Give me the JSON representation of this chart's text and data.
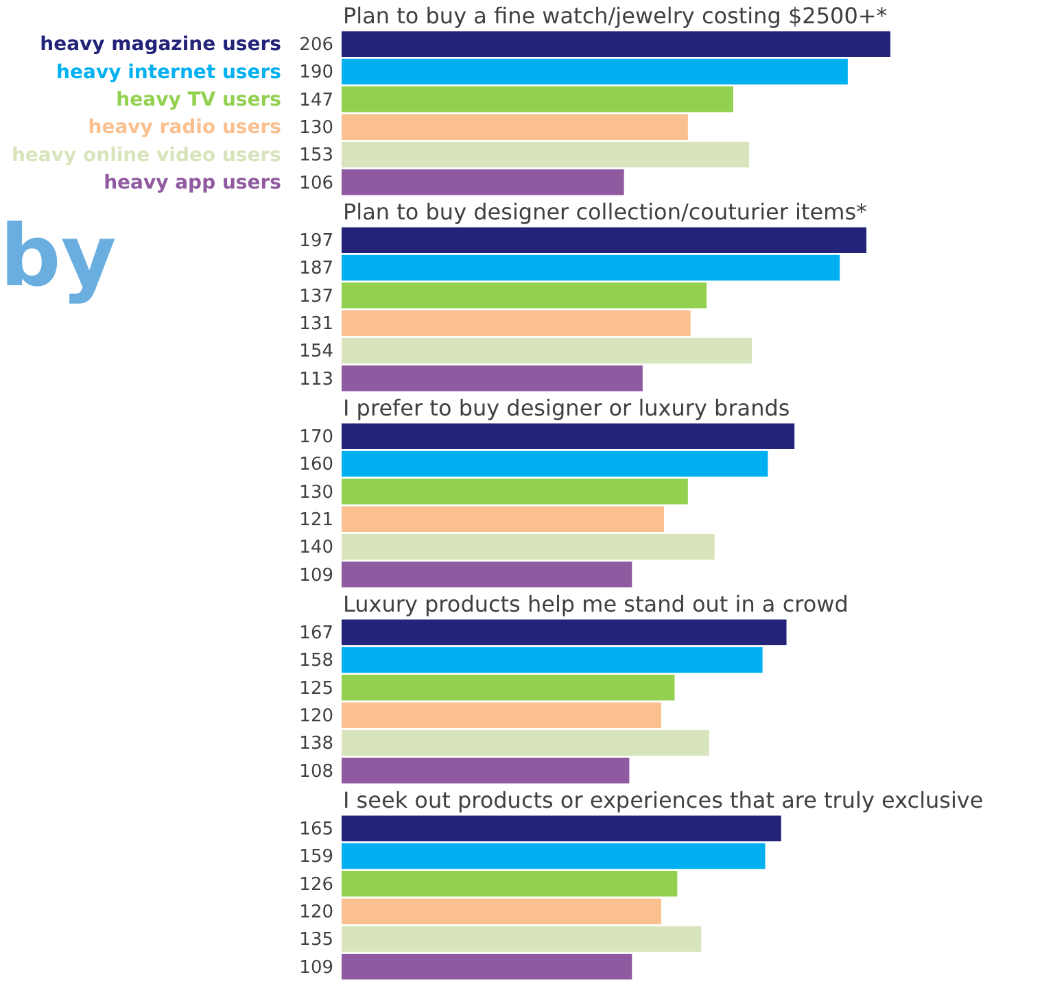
{
  "chart_data": [
    {
      "type": "bar",
      "orientation": "horizontal",
      "title": "Plan to buy a fine watch/jewelry costing $2500+*",
      "categories": [
        "heavy magazine users",
        "heavy internet users",
        "heavy TV users",
        "heavy radio users",
        "heavy online video users",
        "heavy app users"
      ],
      "values": [
        206,
        190,
        147,
        130,
        153,
        106
      ],
      "colors": [
        "#232479",
        "#00b0f0",
        "#92d050",
        "#fac090",
        "#d8e4bc",
        "#8f5aa0"
      ],
      "data_labels": true,
      "tick_labels": "y",
      "annotations": [
        "by"
      ]
    },
    {
      "type": "bar",
      "orientation": "horizontal",
      "title": "Plan to buy designer collection/couturier items*",
      "categories": [
        null,
        null,
        null,
        null,
        null,
        null
      ],
      "values": [
        197,
        187,
        137,
        131,
        154,
        113
      ],
      "colors": [
        "#232479",
        "#00b0f0",
        "#92d050",
        "#fac090",
        "#d8e4bc",
        "#8f5aa0"
      ],
      "data_labels": true,
      "tick_labels": false
    },
    {
      "type": "bar",
      "orientation": "horizontal",
      "title": "I prefer to buy designer or luxury brands",
      "categories": [
        null,
        null,
        null,
        null,
        null,
        null
      ],
      "values": [
        170,
        160,
        130,
        121,
        140,
        109
      ],
      "colors": [
        "#232479",
        "#00b0f0",
        "#92d050",
        "#fac090",
        "#d8e4bc",
        "#8f5aa0"
      ],
      "data_labels": true,
      "tick_labels": false
    },
    {
      "type": "bar",
      "orientation": "horizontal",
      "title": "Luxury products help me stand out in a crowd",
      "categories": [
        null,
        null,
        null,
        null,
        null,
        null
      ],
      "values": [
        167,
        158,
        125,
        120,
        138,
        108
      ],
      "colors": [
        "#232479",
        "#00b0f0",
        "#92d050",
        "#fac090",
        "#d8e4bc",
        "#8f5aa0"
      ],
      "data_labels": true,
      "tick_labels": false
    },
    {
      "type": "bar",
      "orientation": "horizontal",
      "title": "I seek out products or experiences that are truly exclusive",
      "categories": [
        null,
        null,
        null,
        null,
        null,
        null
      ],
      "values": [
        165,
        159,
        126,
        120,
        135,
        109
      ],
      "colors": [
        "#232479",
        "#00b0f0",
        "#92d050",
        "#fac090",
        "#d8e4bc",
        "#8f5aa0"
      ],
      "data_labels": true,
      "tick_labels": false
    }
  ]
}
